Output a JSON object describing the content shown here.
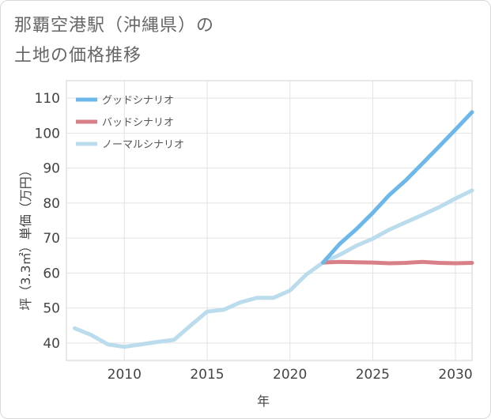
{
  "title": {
    "line1": "那覇空港駅（沖縄県）の",
    "line2": "土地の価格推移"
  },
  "chart_data": {
    "type": "line",
    "xlabel": "年",
    "ylabel": "坪（3.3㎡）単価（万円）",
    "xlim": [
      2006.5,
      2031
    ],
    "ylim": [
      35,
      115
    ],
    "xticks": [
      2010,
      2015,
      2020,
      2025,
      2030
    ],
    "yticks": [
      40,
      50,
      60,
      70,
      80,
      90,
      100,
      110
    ],
    "grid": true,
    "legend_position": "top-left",
    "series": [
      {
        "name": "グッドシナリオ",
        "color": "#6cb8ea",
        "x": [
          2022,
          2023,
          2024,
          2025,
          2026,
          2027,
          2028,
          2029,
          2030,
          2031
        ],
        "values": [
          63,
          68.3,
          72.5,
          77.2,
          82.3,
          86.5,
          91.3,
          96.1,
          101,
          106
        ]
      },
      {
        "name": "バッドシナリオ",
        "color": "#d88088",
        "x": [
          2022,
          2023,
          2024,
          2025,
          2026,
          2027,
          2028,
          2029,
          2030,
          2031
        ],
        "values": [
          63,
          63.2,
          63.1,
          63,
          62.8,
          62.9,
          63.2,
          62.9,
          62.8,
          62.9
        ]
      },
      {
        "name": "ノーマルシナリオ",
        "color": "#badcec",
        "x": [
          2007,
          2008,
          2009,
          2010,
          2011,
          2012,
          2013,
          2014,
          2015,
          2016,
          2017,
          2018,
          2019,
          2020,
          2021,
          2022,
          2023,
          2024,
          2025,
          2026,
          2027,
          2028,
          2029,
          2030,
          2031
        ],
        "values": [
          44.2,
          42.3,
          39.6,
          38.9,
          39.6,
          40.3,
          40.9,
          45,
          49,
          49.5,
          51.6,
          52.9,
          52.9,
          55,
          59.6,
          63,
          65.2,
          67.8,
          69.8,
          72.4,
          74.5,
          76.6,
          78.8,
          81.3,
          83.6
        ]
      }
    ]
  }
}
